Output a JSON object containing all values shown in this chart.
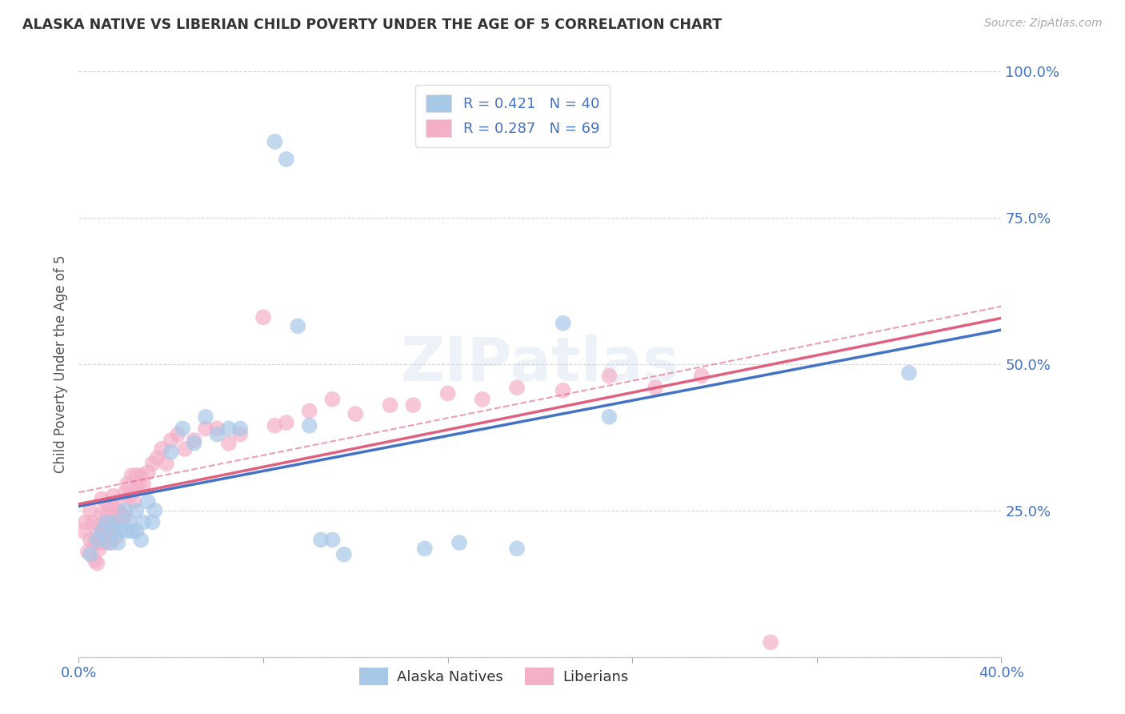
{
  "title": "ALASKA NATIVE VS LIBERIAN CHILD POVERTY UNDER THE AGE OF 5 CORRELATION CHART",
  "source": "Source: ZipAtlas.com",
  "ylabel": "Child Poverty Under the Age of 5",
  "xlim": [
    0.0,
    0.4
  ],
  "ylim": [
    0.0,
    1.0
  ],
  "xtick_positions": [
    0.0,
    0.08,
    0.16,
    0.24,
    0.32,
    0.4
  ],
  "ytick_positions": [
    0.0,
    0.25,
    0.5,
    0.75,
    1.0
  ],
  "xtick_labels": [
    "0.0%",
    "",
    "",
    "",
    "",
    "40.0%"
  ],
  "ytick_labels": [
    "",
    "25.0%",
    "50.0%",
    "75.0%",
    "100.0%"
  ],
  "watermark": "ZIPatlas",
  "legend_r1": "R = 0.421",
  "legend_n1": "N = 40",
  "legend_r2": "R = 0.287",
  "legend_n2": "N = 69",
  "color_blue": "#a8c8e8",
  "color_pink": "#f4b0c8",
  "line_blue": "#4472c4",
  "line_pink": "#e06080",
  "line_dashed_color": "#e06080",
  "alaska_x": [
    0.005,
    0.008,
    0.01,
    0.012,
    0.013,
    0.015,
    0.016,
    0.017,
    0.018,
    0.02,
    0.021,
    0.022,
    0.023,
    0.025,
    0.025,
    0.027,
    0.028,
    0.03,
    0.032,
    0.033,
    0.04,
    0.045,
    0.05,
    0.055,
    0.06,
    0.065,
    0.07,
    0.085,
    0.09,
    0.095,
    0.1,
    0.105,
    0.11,
    0.115,
    0.15,
    0.165,
    0.19,
    0.21,
    0.23,
    0.36
  ],
  "alaska_y": [
    0.175,
    0.2,
    0.215,
    0.23,
    0.195,
    0.215,
    0.23,
    0.195,
    0.215,
    0.25,
    0.215,
    0.23,
    0.215,
    0.25,
    0.215,
    0.2,
    0.23,
    0.265,
    0.23,
    0.25,
    0.35,
    0.39,
    0.365,
    0.41,
    0.38,
    0.39,
    0.39,
    0.88,
    0.85,
    0.565,
    0.395,
    0.2,
    0.2,
    0.175,
    0.185,
    0.195,
    0.185,
    0.57,
    0.41,
    0.485
  ],
  "liberian_x": [
    0.002,
    0.003,
    0.004,
    0.005,
    0.005,
    0.006,
    0.007,
    0.007,
    0.008,
    0.008,
    0.009,
    0.009,
    0.01,
    0.01,
    0.01,
    0.011,
    0.012,
    0.012,
    0.013,
    0.013,
    0.014,
    0.014,
    0.015,
    0.015,
    0.016,
    0.016,
    0.017,
    0.018,
    0.019,
    0.02,
    0.02,
    0.021,
    0.022,
    0.023,
    0.024,
    0.025,
    0.025,
    0.026,
    0.027,
    0.028,
    0.03,
    0.032,
    0.034,
    0.036,
    0.038,
    0.04,
    0.043,
    0.046,
    0.05,
    0.055,
    0.06,
    0.065,
    0.07,
    0.08,
    0.085,
    0.09,
    0.1,
    0.11,
    0.12,
    0.135,
    0.145,
    0.16,
    0.175,
    0.19,
    0.21,
    0.23,
    0.25,
    0.27,
    0.3
  ],
  "liberian_y": [
    0.215,
    0.23,
    0.18,
    0.25,
    0.2,
    0.23,
    0.165,
    0.195,
    0.16,
    0.21,
    0.185,
    0.225,
    0.195,
    0.245,
    0.27,
    0.22,
    0.205,
    0.245,
    0.215,
    0.26,
    0.195,
    0.23,
    0.255,
    0.275,
    0.205,
    0.235,
    0.26,
    0.245,
    0.24,
    0.24,
    0.28,
    0.295,
    0.275,
    0.31,
    0.265,
    0.29,
    0.31,
    0.295,
    0.31,
    0.295,
    0.315,
    0.33,
    0.34,
    0.355,
    0.33,
    0.37,
    0.38,
    0.355,
    0.37,
    0.39,
    0.39,
    0.365,
    0.38,
    0.58,
    0.395,
    0.4,
    0.42,
    0.44,
    0.415,
    0.43,
    0.43,
    0.45,
    0.44,
    0.46,
    0.455,
    0.48,
    0.46,
    0.48,
    0.025
  ]
}
